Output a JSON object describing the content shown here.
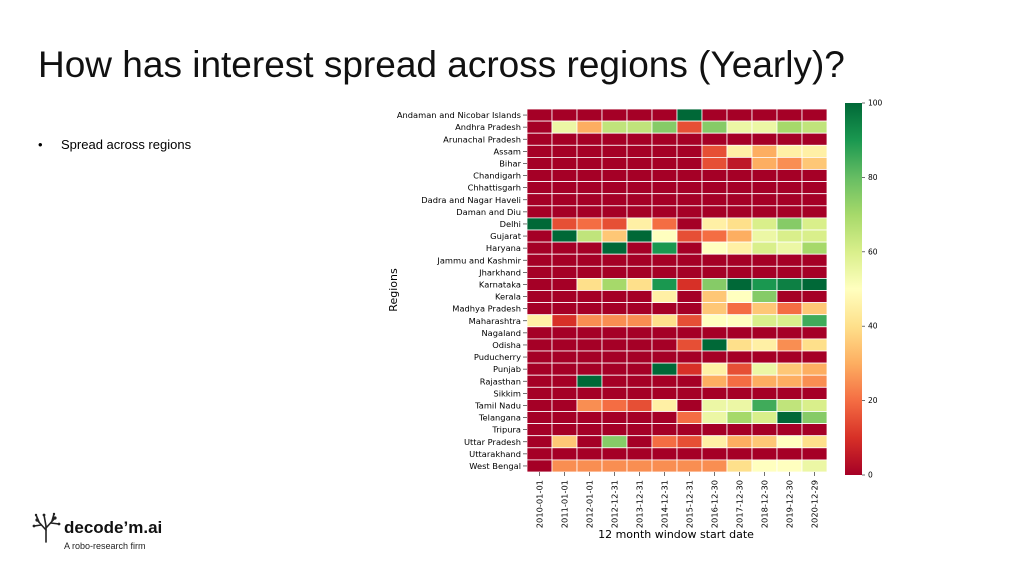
{
  "slide": {
    "title": "How has interest spread across regions (Yearly)?",
    "bullet": "Spread across regions"
  },
  "logo": {
    "icon": "tree-icon",
    "name": "decode’m.ai",
    "tagline": "A robo-research firm"
  },
  "chart_data": {
    "type": "heatmap",
    "xlabel": "12 month window start date",
    "ylabel": "Regions",
    "x": [
      "2010-01-01",
      "2011-01-01",
      "2012-01-01",
      "2012-12-31",
      "2013-12-31",
      "2014-12-31",
      "2015-12-31",
      "2016-12-30",
      "2017-12-30",
      "2018-12-30",
      "2019-12-30",
      "2020-12-29"
    ],
    "y": [
      "Andaman and Nicobar Islands",
      "Andhra Pradesh",
      "Arunachal Pradesh",
      "Assam",
      "Bihar",
      "Chandigarh",
      "Chhattisgarh",
      "Dadra and Nagar Haveli",
      "Daman and Diu",
      "Delhi",
      "Gujarat",
      "Haryana",
      "Jammu and Kashmir",
      "Jharkhand",
      "Karnataka",
      "Kerala",
      "Madhya Pradesh",
      "Maharashtra",
      "Nagaland",
      "Odisha",
      "Puducherry",
      "Punjab",
      "Rajasthan",
      "Sikkim",
      "Tamil Nadu",
      "Telangana",
      "Tripura",
      "Uttar Pradesh",
      "Uttarakhand",
      "West Bengal"
    ],
    "values": [
      [
        0,
        0,
        0,
        0,
        0,
        0,
        100,
        0,
        0,
        0,
        0,
        0
      ],
      [
        0,
        55,
        30,
        65,
        65,
        75,
        15,
        75,
        55,
        55,
        70,
        65
      ],
      [
        0,
        0,
        0,
        0,
        0,
        0,
        0,
        0,
        0,
        0,
        0,
        0
      ],
      [
        0,
        0,
        0,
        0,
        0,
        0,
        0,
        15,
        45,
        30,
        45,
        45
      ],
      [
        0,
        0,
        0,
        0,
        0,
        0,
        0,
        15,
        5,
        30,
        25,
        35
      ],
      [
        0,
        0,
        0,
        0,
        0,
        0,
        0,
        0,
        0,
        0,
        0,
        0
      ],
      [
        0,
        0,
        0,
        0,
        0,
        0,
        0,
        0,
        0,
        0,
        0,
        0
      ],
      [
        0,
        0,
        0,
        0,
        0,
        0,
        0,
        0,
        0,
        0,
        0,
        0
      ],
      [
        0,
        0,
        0,
        0,
        0,
        0,
        0,
        0,
        0,
        0,
        0,
        0
      ],
      [
        100,
        15,
        20,
        15,
        45,
        20,
        0,
        45,
        40,
        60,
        75,
        60
      ],
      [
        0,
        100,
        65,
        35,
        100,
        50,
        15,
        20,
        30,
        55,
        60,
        60
      ],
      [
        0,
        0,
        0,
        100,
        0,
        90,
        0,
        50,
        45,
        60,
        55,
        70
      ],
      [
        0,
        0,
        0,
        0,
        0,
        0,
        0,
        0,
        0,
        0,
        0,
        0
      ],
      [
        0,
        0,
        0,
        0,
        0,
        0,
        0,
        0,
        0,
        0,
        0,
        0
      ],
      [
        0,
        0,
        40,
        70,
        40,
        90,
        10,
        75,
        100,
        90,
        95,
        100
      ],
      [
        0,
        0,
        0,
        0,
        0,
        45,
        0,
        35,
        50,
        75,
        0,
        0
      ],
      [
        0,
        0,
        0,
        0,
        0,
        0,
        0,
        35,
        20,
        35,
        20,
        35
      ],
      [
        45,
        10,
        25,
        25,
        25,
        40,
        15,
        50,
        50,
        60,
        60,
        85
      ],
      [
        0,
        0,
        0,
        0,
        0,
        0,
        0,
        0,
        0,
        0,
        0,
        0
      ],
      [
        0,
        0,
        0,
        0,
        0,
        0,
        15,
        100,
        40,
        45,
        25,
        40
      ],
      [
        0,
        0,
        0,
        0,
        0,
        0,
        0,
        0,
        0,
        0,
        0,
        0
      ],
      [
        0,
        0,
        0,
        0,
        0,
        100,
        10,
        45,
        15,
        55,
        35,
        30
      ],
      [
        0,
        0,
        100,
        0,
        0,
        0,
        0,
        30,
        20,
        30,
        30,
        25
      ],
      [
        0,
        0,
        0,
        0,
        0,
        0,
        0,
        0,
        0,
        0,
        0,
        0
      ],
      [
        0,
        0,
        25,
        20,
        15,
        45,
        0,
        55,
        55,
        85,
        65,
        60
      ],
      [
        0,
        0,
        0,
        0,
        0,
        0,
        20,
        55,
        70,
        60,
        100,
        75
      ],
      [
        0,
        0,
        0,
        0,
        0,
        0,
        0,
        0,
        0,
        0,
        0,
        0
      ],
      [
        0,
        35,
        0,
        75,
        0,
        20,
        15,
        45,
        30,
        35,
        50,
        40
      ],
      [
        0,
        0,
        0,
        0,
        0,
        0,
        0,
        0,
        0,
        0,
        0,
        0
      ],
      [
        0,
        25,
        25,
        25,
        25,
        25,
        25,
        25,
        40,
        50,
        50,
        55
      ]
    ],
    "colorbar": {
      "min": 0,
      "max": 100,
      "ticks": [
        0,
        20,
        40,
        60,
        80,
        100
      ],
      "colormap": "RdYlGn"
    },
    "colors": [
      "#a50026",
      "#d73027",
      "#f46d43",
      "#fdae61",
      "#fee08b",
      "#ffffbf",
      "#d9ef8b",
      "#a6d96a",
      "#66bd63",
      "#1a9850",
      "#006837"
    ]
  }
}
